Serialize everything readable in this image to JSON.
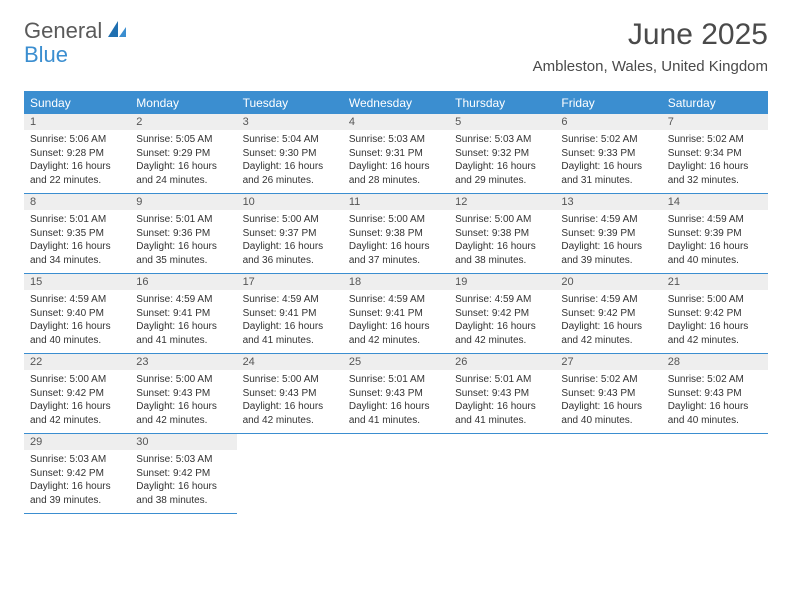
{
  "brand": {
    "word1": "General",
    "word2": "Blue"
  },
  "title": "June 2025",
  "location": "Ambleston, Wales, United Kingdom",
  "colors": {
    "accent": "#3b8ed0",
    "header_bg": "#3b8ed0",
    "daynum_bg": "#eeeeee",
    "text": "#333333",
    "title_color": "#4a4a4a"
  },
  "day_headers": [
    "Sunday",
    "Monday",
    "Tuesday",
    "Wednesday",
    "Thursday",
    "Friday",
    "Saturday"
  ],
  "weeks": [
    [
      {
        "n": "1",
        "sunrise": "5:06 AM",
        "sunset": "9:28 PM",
        "dl_h": "16",
        "dl_m": "22"
      },
      {
        "n": "2",
        "sunrise": "5:05 AM",
        "sunset": "9:29 PM",
        "dl_h": "16",
        "dl_m": "24"
      },
      {
        "n": "3",
        "sunrise": "5:04 AM",
        "sunset": "9:30 PM",
        "dl_h": "16",
        "dl_m": "26"
      },
      {
        "n": "4",
        "sunrise": "5:03 AM",
        "sunset": "9:31 PM",
        "dl_h": "16",
        "dl_m": "28"
      },
      {
        "n": "5",
        "sunrise": "5:03 AM",
        "sunset": "9:32 PM",
        "dl_h": "16",
        "dl_m": "29"
      },
      {
        "n": "6",
        "sunrise": "5:02 AM",
        "sunset": "9:33 PM",
        "dl_h": "16",
        "dl_m": "31"
      },
      {
        "n": "7",
        "sunrise": "5:02 AM",
        "sunset": "9:34 PM",
        "dl_h": "16",
        "dl_m": "32"
      }
    ],
    [
      {
        "n": "8",
        "sunrise": "5:01 AM",
        "sunset": "9:35 PM",
        "dl_h": "16",
        "dl_m": "34"
      },
      {
        "n": "9",
        "sunrise": "5:01 AM",
        "sunset": "9:36 PM",
        "dl_h": "16",
        "dl_m": "35"
      },
      {
        "n": "10",
        "sunrise": "5:00 AM",
        "sunset": "9:37 PM",
        "dl_h": "16",
        "dl_m": "36"
      },
      {
        "n": "11",
        "sunrise": "5:00 AM",
        "sunset": "9:38 PM",
        "dl_h": "16",
        "dl_m": "37"
      },
      {
        "n": "12",
        "sunrise": "5:00 AM",
        "sunset": "9:38 PM",
        "dl_h": "16",
        "dl_m": "38"
      },
      {
        "n": "13",
        "sunrise": "4:59 AM",
        "sunset": "9:39 PM",
        "dl_h": "16",
        "dl_m": "39"
      },
      {
        "n": "14",
        "sunrise": "4:59 AM",
        "sunset": "9:39 PM",
        "dl_h": "16",
        "dl_m": "40"
      }
    ],
    [
      {
        "n": "15",
        "sunrise": "4:59 AM",
        "sunset": "9:40 PM",
        "dl_h": "16",
        "dl_m": "40"
      },
      {
        "n": "16",
        "sunrise": "4:59 AM",
        "sunset": "9:41 PM",
        "dl_h": "16",
        "dl_m": "41"
      },
      {
        "n": "17",
        "sunrise": "4:59 AM",
        "sunset": "9:41 PM",
        "dl_h": "16",
        "dl_m": "41"
      },
      {
        "n": "18",
        "sunrise": "4:59 AM",
        "sunset": "9:41 PM",
        "dl_h": "16",
        "dl_m": "42"
      },
      {
        "n": "19",
        "sunrise": "4:59 AM",
        "sunset": "9:42 PM",
        "dl_h": "16",
        "dl_m": "42"
      },
      {
        "n": "20",
        "sunrise": "4:59 AM",
        "sunset": "9:42 PM",
        "dl_h": "16",
        "dl_m": "42"
      },
      {
        "n": "21",
        "sunrise": "5:00 AM",
        "sunset": "9:42 PM",
        "dl_h": "16",
        "dl_m": "42"
      }
    ],
    [
      {
        "n": "22",
        "sunrise": "5:00 AM",
        "sunset": "9:42 PM",
        "dl_h": "16",
        "dl_m": "42"
      },
      {
        "n": "23",
        "sunrise": "5:00 AM",
        "sunset": "9:43 PM",
        "dl_h": "16",
        "dl_m": "42"
      },
      {
        "n": "24",
        "sunrise": "5:00 AM",
        "sunset": "9:43 PM",
        "dl_h": "16",
        "dl_m": "42"
      },
      {
        "n": "25",
        "sunrise": "5:01 AM",
        "sunset": "9:43 PM",
        "dl_h": "16",
        "dl_m": "41"
      },
      {
        "n": "26",
        "sunrise": "5:01 AM",
        "sunset": "9:43 PM",
        "dl_h": "16",
        "dl_m": "41"
      },
      {
        "n": "27",
        "sunrise": "5:02 AM",
        "sunset": "9:43 PM",
        "dl_h": "16",
        "dl_m": "40"
      },
      {
        "n": "28",
        "sunrise": "5:02 AM",
        "sunset": "9:43 PM",
        "dl_h": "16",
        "dl_m": "40"
      }
    ],
    [
      {
        "n": "29",
        "sunrise": "5:03 AM",
        "sunset": "9:42 PM",
        "dl_h": "16",
        "dl_m": "39"
      },
      {
        "n": "30",
        "sunrise": "5:03 AM",
        "sunset": "9:42 PM",
        "dl_h": "16",
        "dl_m": "38"
      },
      null,
      null,
      null,
      null,
      null
    ]
  ],
  "labels": {
    "sunrise": "Sunrise:",
    "sunset": "Sunset:",
    "daylight": "Daylight:",
    "hours_and": "hours and",
    "minutes": "minutes."
  }
}
